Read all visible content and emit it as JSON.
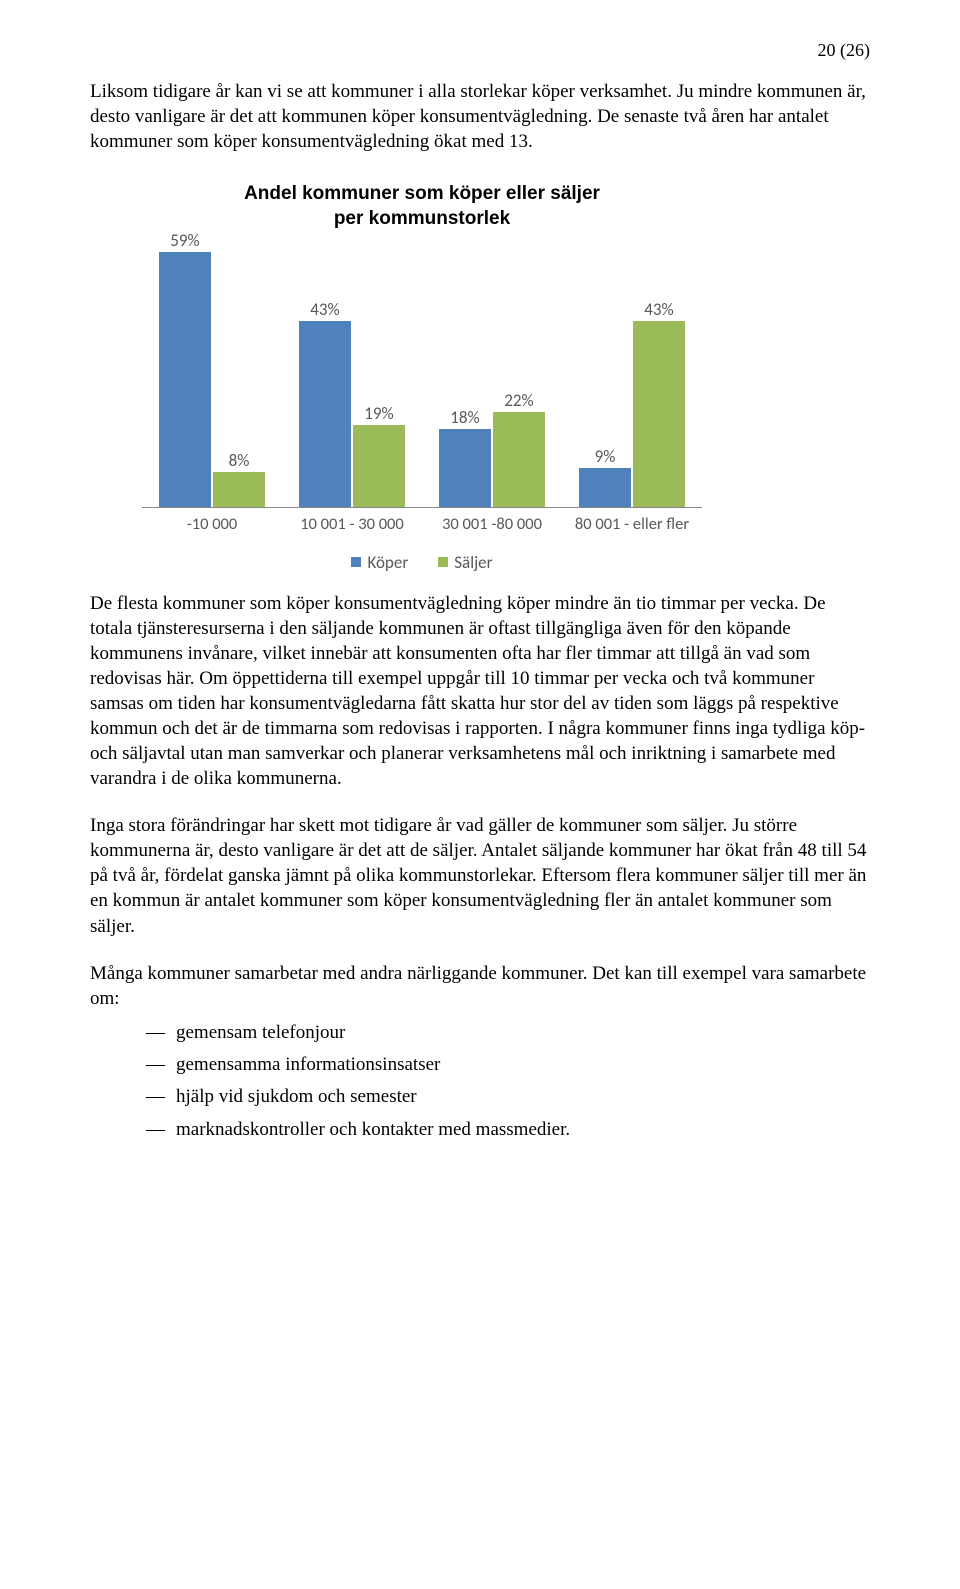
{
  "page_number": "20 (26)",
  "paragraphs": {
    "p1": "Liksom tidigare år kan vi se att kommuner i alla storlekar köper verksamhet. Ju mindre kommunen är, desto vanligare är det att kommunen köper konsumentvägledning. De senaste två åren har antalet kommuner som köper konsumentvägledning ökat med 13.",
    "p2": "De flesta kommuner som köper konsumentvägledning köper mindre än tio timmar per vecka. De totala tjänsteresurserna i den säljande kommunen är oftast tillgängliga även för den köpande kommunens invånare, vilket innebär att konsumenten ofta har fler timmar att tillgå än vad som redovisas här. Om öppettiderna till exempel uppgår till 10 timmar per vecka och två kommuner samsas om tiden har konsumentvägledarna fått skatta hur stor del av tiden som läggs på respektive kommun och det är de timmarna som redovisas i rapporten. I några kommuner finns inga tydliga köp- och säljavtal utan man samverkar och planerar verksamhetens mål och inriktning i samarbete med varandra i de olika kommunerna.",
    "p3": "Inga stora förändringar har skett mot tidigare år vad gäller de kommuner som säljer. Ju större kommunerna är, desto vanligare är det att de säljer. Antalet säljande kommuner har ökat från 48 till 54 på två år, fördelat ganska jämnt på olika kommunstorlekar. Eftersom flera kommuner säljer till mer än en kommun är antalet kommuner som köper konsumentvägledning fler än antalet kommuner som säljer.",
    "p4": "Många kommuner samarbetar med andra närliggande kommuner. Det kan till exempel vara samarbete om:"
  },
  "bullets": [
    "gemensam telefonjour",
    "gemensamma informationsinsatser",
    "hjälp vid sjukdom och semester",
    "marknadskontroller och kontakter med massmedier."
  ],
  "chart": {
    "title_line1": "Andel kommuner som köper eller säljer",
    "title_line2": "per kommunstorlek",
    "series_names": {
      "a": "Köper",
      "b": "Säljer"
    },
    "colors": {
      "a": "#4f81bd",
      "b": "#9bbb59",
      "axis": "#888888",
      "label": "#595959"
    },
    "ymax": 60,
    "categories": [
      {
        "label": "-10 000",
        "a": 59,
        "b": 8,
        "a_label": "59%",
        "b_label": "8%"
      },
      {
        "label": "10 001 - 30 000",
        "a": 43,
        "b": 19,
        "a_label": "43%",
        "b_label": "19%"
      },
      {
        "label": "30 001 -80 000",
        "a": 18,
        "b": 22,
        "a_label": "18%",
        "b_label": "22%"
      },
      {
        "label": "80 001 - eller fler",
        "a": 9,
        "b": 43,
        "a_label": "9%",
        "b_label": "43%"
      }
    ]
  }
}
